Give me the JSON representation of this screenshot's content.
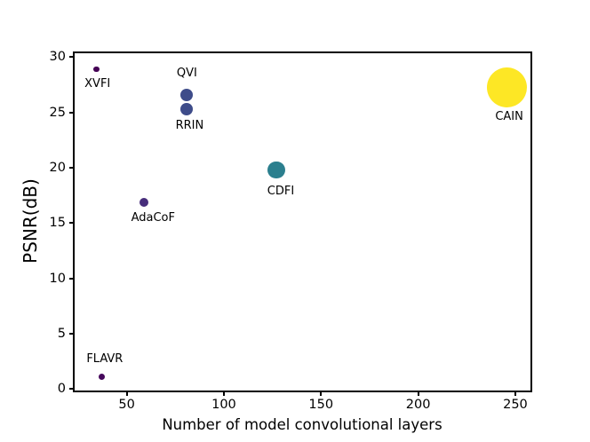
{
  "figure": {
    "background": "#ffffff",
    "axis_color": "#000000",
    "text_color": "#000000"
  },
  "chart_data": {
    "type": "scatter",
    "title": "",
    "xlabel": "Number of model convolutional layers",
    "ylabel": "PSNR(dB)",
    "grid": false,
    "legend": "none",
    "xlim": [
      23.2,
      257.8
    ],
    "ylim": [
      -0.13,
      30.35
    ],
    "xticks": [
      50,
      100,
      150,
      200,
      250
    ],
    "yticks": [
      0,
      5,
      10,
      15,
      20,
      25,
      30
    ],
    "points": [
      {
        "name": "XVFI",
        "x": 34.5,
        "y": 28.9,
        "r": 3.4,
        "color": "#440154",
        "label_side": "below",
        "label_gap": 6,
        "label_dx": 1
      },
      {
        "name": "FLAVR",
        "x": 37.3,
        "y": 1.1,
        "r": 3.5,
        "color": "#46085c",
        "label_side": "above",
        "label_gap": 9,
        "label_dx": 3
      },
      {
        "name": "AdaCoF",
        "x": 59,
        "y": 16.9,
        "r": 5,
        "color": "#472d7b",
        "label_side": "below",
        "label_gap": 5,
        "label_dx": 10
      },
      {
        "name": "QVI",
        "x": 81,
        "y": 26.6,
        "r": 7,
        "color": "#3e4c8a",
        "label_side": "above",
        "label_gap": 10,
        "label_dx": 0
      },
      {
        "name": "RRIN",
        "x": 81,
        "y": 25.3,
        "r": 7,
        "color": "#3e4c8a",
        "label_side": "below",
        "label_gap": 4,
        "label_dx": 3
      },
      {
        "name": "CDFI",
        "x": 127,
        "y": 19.8,
        "r": 9.7,
        "color": "#2b7f8e",
        "label_side": "below",
        "label_gap": 7,
        "label_dx": 5
      },
      {
        "name": "CAIN",
        "x": 245.5,
        "y": 27.3,
        "r": 22.5,
        "color": "#fde725",
        "label_side": "below",
        "label_gap": 3,
        "label_dx": 3
      }
    ]
  }
}
